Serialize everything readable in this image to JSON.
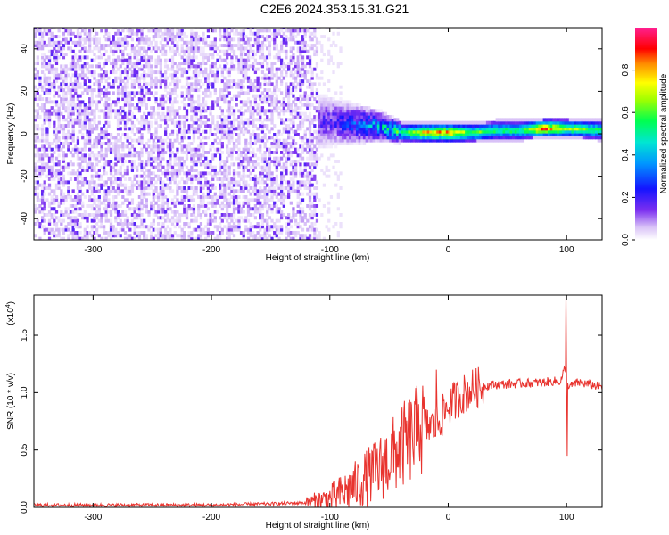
{
  "title": "C2E6.2024.353.15.31.G21",
  "chart_data": [
    {
      "type": "heatmap",
      "xlabel": "Height of straight line (km)",
      "ylabel": "Frequency (Hz)",
      "xlim": [
        -350,
        130
      ],
      "ylim": [
        -50,
        50
      ],
      "xticks": [
        -300,
        -200,
        -100,
        0,
        100
      ],
      "xtick_labels": [
        "-300",
        "-200",
        "-100",
        "0",
        "100"
      ],
      "yticks": [
        -40,
        -20,
        0,
        20,
        40
      ],
      "ytick_labels": [
        "-40",
        "-20",
        "0",
        "20",
        "40"
      ],
      "colorbar": {
        "label": "Normalized spectral amplitude",
        "range": [
          0,
          1
        ],
        "ticks": [
          0.0,
          0.2,
          0.4,
          0.6,
          0.8
        ],
        "tick_labels": [
          "0.0",
          "0.2",
          "0.4",
          "0.6",
          "0.8"
        ],
        "colormap": "rainbow (white-purple-blue-cyan-green-yellow-red-magenta)"
      },
      "ridge": {
        "description": "Signal ridge near 0 Hz",
        "x": [
          -120,
          -100,
          -80,
          -60,
          -40,
          -20,
          0,
          20,
          40,
          60,
          80,
          100,
          130
        ],
        "frequency": [
          5,
          5,
          4,
          3,
          0,
          0,
          0,
          0,
          1,
          1,
          2,
          2,
          1
        ],
        "amplitude": [
          0.15,
          0.2,
          0.3,
          0.45,
          0.6,
          0.85,
          0.9,
          0.65,
          0.6,
          0.6,
          0.9,
          0.7,
          0.6
        ]
      },
      "noise_region": {
        "x_range": [
          -350,
          -110
        ],
        "frequency_range": [
          -50,
          50
        ],
        "amplitude": 0.1
      }
    },
    {
      "type": "line",
      "xlabel": "Height of straight line (km)",
      "ylabel": "SNR (10 * v/v)",
      "scale_note": "(x10",
      "scale_exponent": "4",
      "xlim": [
        -350,
        130
      ],
      "ylim": [
        0,
        1.85
      ],
      "xticks": [
        -300,
        -200,
        -100,
        0,
        100
      ],
      "xtick_labels": [
        "-300",
        "-200",
        "-100",
        "0",
        "100"
      ],
      "yticks": [
        0.0,
        0.5,
        1.0,
        1.5
      ],
      "ytick_labels": [
        "0.0",
        "0.5",
        "1.0",
        "1.5"
      ],
      "color": "#e8332e",
      "x": [
        -350,
        -300,
        -250,
        -200,
        -150,
        -120,
        -100,
        -90,
        -80,
        -70,
        -60,
        -50,
        -40,
        -30,
        -20,
        -10,
        -5,
        0,
        10,
        20,
        30,
        40,
        60,
        80,
        90,
        95,
        98,
        100,
        102,
        110,
        120,
        130
      ],
      "y": [
        0.02,
        0.02,
        0.02,
        0.02,
        0.03,
        0.04,
        0.07,
        0.12,
        0.18,
        0.25,
        0.32,
        0.42,
        0.52,
        0.62,
        0.7,
        0.72,
        0.8,
        0.88,
        0.97,
        1.03,
        1.06,
        1.07,
        1.08,
        1.09,
        1.1,
        1.1,
        1.2,
        0.45,
        1.05,
        1.09,
        1.07,
        1.05
      ],
      "spikes": [
        {
          "x": 99.5,
          "y": 1.85
        },
        {
          "x": 100.5,
          "y": 0.45
        },
        {
          "x": -10,
          "y": 1.2
        },
        {
          "x": -25,
          "y": 0.9
        },
        {
          "x": -45,
          "y": 0.5
        }
      ]
    }
  ]
}
